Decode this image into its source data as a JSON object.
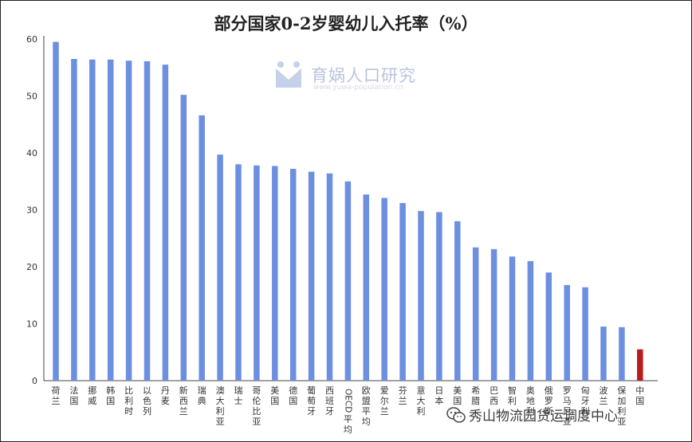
{
  "chart_data": {
    "type": "bar",
    "title": "部分国家0-2岁婴幼儿入托率（%）",
    "ylim": [
      0,
      60
    ],
    "yticks": [
      "0",
      "10",
      "20",
      "30",
      "40",
      "50",
      "60"
    ],
    "grid": false,
    "categories": [
      "荷兰",
      "法国",
      "挪威",
      "韩国",
      "比利时",
      "以色列",
      "丹麦",
      "新西兰",
      "瑞典",
      "澳大利亚",
      "瑞士",
      "哥伦比亚",
      "美国",
      "德国",
      "葡萄牙",
      "西班牙",
      "OECD平均",
      "欧盟平均",
      "爱尔兰",
      "芬兰",
      "意大利",
      "日本",
      "美国",
      "希腊",
      "巴西",
      "智利",
      "奥地利",
      "俄罗斯",
      "罗马尼亚",
      "匈牙利",
      "波兰",
      "保加利亚",
      "中国"
    ],
    "values": [
      59.5,
      56.5,
      56.4,
      56.4,
      56.2,
      56.1,
      55.5,
      50.2,
      46.6,
      39.7,
      38.0,
      37.8,
      37.7,
      37.2,
      36.7,
      36.4,
      35.0,
      32.7,
      32.1,
      31.2,
      29.8,
      29.6,
      28.0,
      23.4,
      23.1,
      21.8,
      21.0,
      19.0,
      16.8,
      16.4,
      9.5,
      9.4,
      5.5
    ],
    "colors": {
      "default": "#6d8fe0",
      "highlight": "#b81c1c"
    },
    "highlight_category": "中国"
  },
  "watermark": {
    "brand": "育娲人口研究",
    "url": "www.yuwa-population.cn"
  },
  "footer": {
    "source": "秀山物流园货运调度中心",
    "icon": "wechat-icon"
  }
}
